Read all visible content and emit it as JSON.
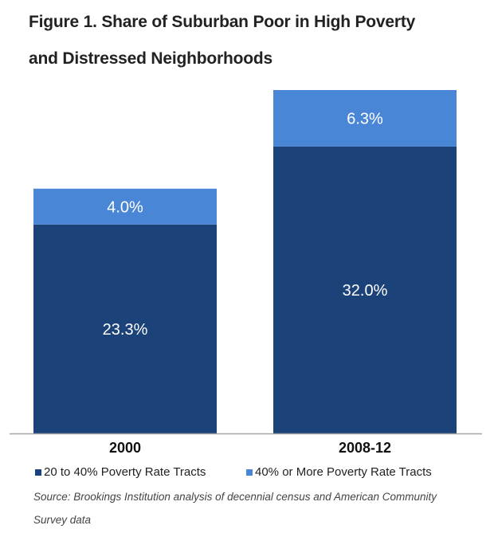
{
  "chart_data": {
    "type": "bar",
    "stacked": true,
    "title": "Figure 1. Share of Suburban Poor in High Poverty and Distressed Neighborhoods",
    "title_lines": [
      "Figure 1. Share of Suburban Poor in High Poverty",
      "and Distressed Neighborhoods"
    ],
    "categories": [
      "2000",
      "2008-12"
    ],
    "series": [
      {
        "name": "20 to 40% Poverty Rate Tracts",
        "values": [
          23.3,
          32.0
        ],
        "labels": [
          "23.3%",
          "32.0%"
        ],
        "color": "#1c427a"
      },
      {
        "name": "40% or More Poverty Rate Tracts",
        "values": [
          4.0,
          6.3
        ],
        "labels": [
          "4.0%",
          "6.3%"
        ],
        "color": "#4a86d6"
      }
    ],
    "xlabel": "",
    "ylabel": "",
    "ylim": [
      0,
      38.3
    ],
    "grid": false,
    "legend_position": "bottom",
    "source_lines": [
      "Source: Brookings Institution analysis of decennial census and American Community",
      "Survey data"
    ],
    "axis_color": "#a6a6a6",
    "label_color": "#ffffff"
  }
}
